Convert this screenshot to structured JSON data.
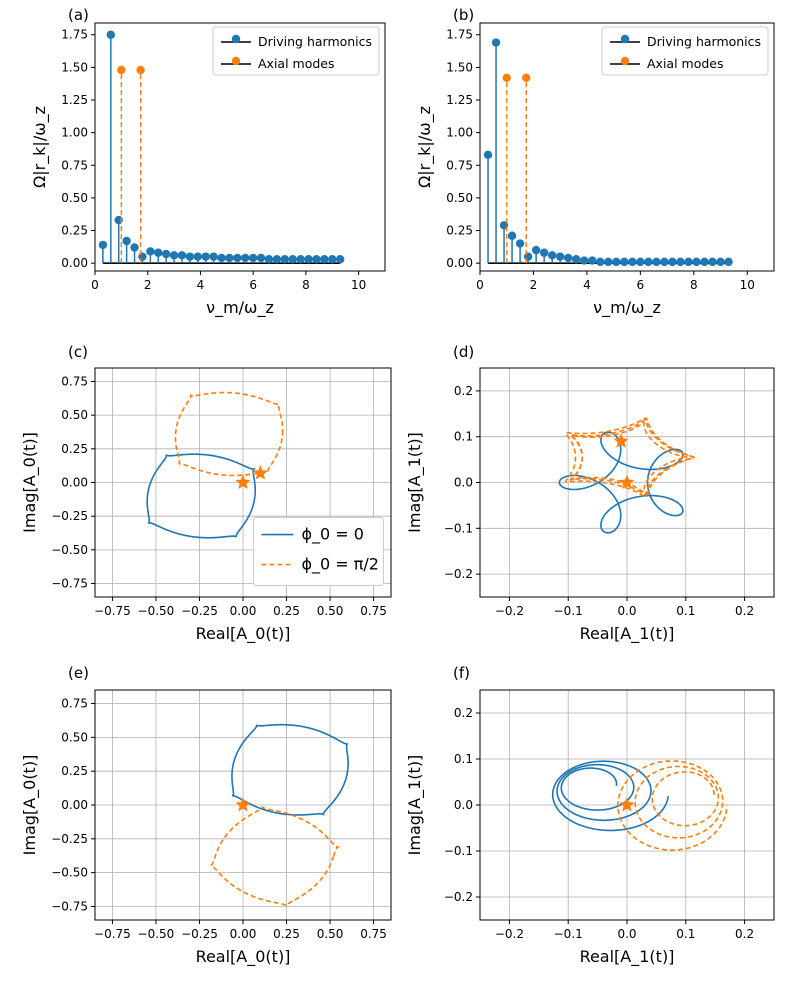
{
  "colors": {
    "blue": "#1f77b4",
    "orange": "#ff7f0e",
    "grid": "#b0b0b0",
    "baseline": "#000000"
  },
  "chart_data": [
    {
      "id": "a",
      "type": "stem",
      "panel_label": "(a)",
      "xlabel": "ν_m/ω_z",
      "ylabel": "Ω|r_k|/ω_z",
      "xlim": [
        0,
        11
      ],
      "ylim": [
        -0.06,
        1.84
      ],
      "xticks": [
        "0",
        "2",
        "4",
        "6",
        "8",
        "10"
      ],
      "yticks": [
        "0.00",
        "0.25",
        "0.50",
        "0.75",
        "1.00",
        "1.25",
        "1.50",
        "1.75"
      ],
      "legend": [
        "Driving harmonics",
        "Axial modes"
      ],
      "series": [
        {
          "name": "Driving harmonics",
          "color": "blue",
          "x": [
            0.3,
            0.6,
            0.9,
            1.2,
            1.5,
            1.8,
            2.1,
            2.4,
            2.7,
            3.0,
            3.3,
            3.6,
            3.9,
            4.2,
            4.5,
            4.8,
            5.1,
            5.4,
            5.7,
            6.0,
            6.3,
            6.6,
            6.9,
            7.2,
            7.5,
            7.8,
            8.1,
            8.4,
            8.7,
            9.0,
            9.3
          ],
          "y": [
            0.14,
            1.75,
            0.33,
            0.17,
            0.12,
            0.05,
            0.09,
            0.08,
            0.07,
            0.06,
            0.06,
            0.05,
            0.05,
            0.05,
            0.05,
            0.04,
            0.04,
            0.04,
            0.04,
            0.04,
            0.04,
            0.03,
            0.03,
            0.03,
            0.03,
            0.03,
            0.03,
            0.03,
            0.03,
            0.03,
            0.03
          ]
        },
        {
          "name": "Axial modes",
          "color": "orange",
          "x": [
            1.0,
            1.73
          ],
          "y": [
            1.48,
            1.48
          ]
        }
      ]
    },
    {
      "id": "b",
      "type": "stem",
      "panel_label": "(b)",
      "xlabel": "ν_m/ω_z",
      "ylabel": "Ω|r_k|/ω_z",
      "xlim": [
        0,
        11
      ],
      "ylim": [
        -0.06,
        1.84
      ],
      "xticks": [
        "0",
        "2",
        "4",
        "6",
        "8",
        "10"
      ],
      "yticks": [
        "0.00",
        "0.25",
        "0.50",
        "0.75",
        "1.00",
        "1.25",
        "1.50",
        "1.75"
      ],
      "legend": [
        "Driving harmonics",
        "Axial modes"
      ],
      "series": [
        {
          "name": "Driving harmonics",
          "color": "blue",
          "x": [
            0.3,
            0.6,
            0.9,
            1.2,
            1.5,
            1.8,
            2.1,
            2.4,
            2.7,
            3.0,
            3.3,
            3.6,
            3.9,
            4.2,
            4.5,
            4.8,
            5.1,
            5.4,
            5.7,
            6.0,
            6.3,
            6.6,
            6.9,
            7.2,
            7.5,
            7.8,
            8.1,
            8.4,
            8.7,
            9.0,
            9.3
          ],
          "y": [
            0.83,
            1.69,
            0.29,
            0.21,
            0.15,
            0.05,
            0.1,
            0.08,
            0.06,
            0.05,
            0.04,
            0.03,
            0.02,
            0.02,
            0.01,
            0.01,
            0.01,
            0.01,
            0.01,
            0.01,
            0.01,
            0.01,
            0.01,
            0.01,
            0.01,
            0.01,
            0.01,
            0.01,
            0.01,
            0.01,
            0.01
          ]
        },
        {
          "name": "Axial modes",
          "color": "orange",
          "x": [
            1.0,
            1.73
          ],
          "y": [
            1.42,
            1.42
          ]
        }
      ]
    },
    {
      "id": "c",
      "type": "parametric",
      "panel_label": "(c)",
      "xlabel": "Real[A_0(t)]",
      "ylabel": "Imag[A_0(t)]",
      "xlim": [
        -0.85,
        0.85
      ],
      "ylim": [
        -0.85,
        0.85
      ],
      "xticks": [
        "−0.75",
        "−0.50",
        "−0.25",
        "0.00",
        "0.25",
        "0.50",
        "0.75"
      ],
      "yticks": [
        "−0.75",
        "−0.50",
        "−0.25",
        "0.00",
        "0.25",
        "0.50",
        "0.75"
      ],
      "legend": [
        "ϕ_0 = 0",
        "ϕ_0 = π/2"
      ],
      "series": [
        {
          "name": "ϕ_0 = 0",
          "color": "blue",
          "dash": false,
          "cx": -0.24,
          "cy": -0.1,
          "r": 0.33,
          "lobes": 4,
          "depth": 0.18,
          "rot": 0.2
        },
        {
          "name": "ϕ_0 = π/2",
          "color": "orange",
          "dash": true,
          "cx": -0.08,
          "cy": 0.36,
          "r": 0.33,
          "lobes": 4,
          "depth": 0.18,
          "rot": 1.7
        }
      ],
      "stars": [
        {
          "x": 0.0,
          "y": 0.0
        },
        {
          "x": 0.1,
          "y": 0.07
        }
      ]
    },
    {
      "id": "d",
      "type": "parametric",
      "panel_label": "(d)",
      "xlabel": "Real[A_1(t)]",
      "ylabel": "Imag[A_1(t)]",
      "xlim": [
        -0.25,
        0.25
      ],
      "ylim": [
        -0.25,
        0.25
      ],
      "xticks": [
        "−0.2",
        "−0.1",
        "0.0",
        "0.1",
        "0.2"
      ],
      "yticks": [
        "−0.2",
        "−0.1",
        "0.0",
        "0.1",
        "0.2"
      ],
      "series": [
        {
          "name": "ϕ_0 = 0",
          "color": "blue",
          "dash": false,
          "type": "trefoil",
          "a": 0.06,
          "b": 0.05,
          "ox": 0.0,
          "oy": 0.0
        },
        {
          "name": "ϕ_0 = π/2",
          "color": "orange",
          "dash": true,
          "type": "ellipses",
          "cx": -0.005,
          "cy": 0.055,
          "rx": 0.095,
          "ry": 0.1
        }
      ],
      "stars": [
        {
          "x": 0.0,
          "y": 0.0
        },
        {
          "x": -0.01,
          "y": 0.09
        }
      ]
    },
    {
      "id": "e",
      "type": "parametric",
      "panel_label": "(e)",
      "xlabel": "Real[A_0(t)]",
      "ylabel": "Imag[A_0(t)]",
      "xlim": [
        -0.85,
        0.85
      ],
      "ylim": [
        -0.85,
        0.85
      ],
      "xticks": [
        "−0.75",
        "−0.50",
        "−0.25",
        "0.00",
        "0.25",
        "0.50",
        "0.75"
      ],
      "yticks": [
        "−0.75",
        "−0.50",
        "−0.25",
        "0.00",
        "0.25",
        "0.50",
        "0.75"
      ],
      "series": [
        {
          "name": "ϕ_0 = 0",
          "color": "blue",
          "dash": false,
          "cx": 0.27,
          "cy": 0.26,
          "r": 0.35,
          "lobes": 4,
          "depth": 0.16,
          "rot": 3.4
        },
        {
          "name": "ϕ_0 = π/2",
          "color": "orange",
          "dash": true,
          "cx": 0.18,
          "cy": -0.38,
          "r": 0.34,
          "lobes": 4,
          "depth": 0.17,
          "rot": 0.6
        }
      ],
      "stars": [
        {
          "x": 0.0,
          "y": 0.0
        }
      ]
    },
    {
      "id": "f",
      "type": "parametric",
      "panel_label": "(f)",
      "xlabel": "Real[A_1(t)]",
      "ylabel": "Imag[A_1(t)]",
      "xlim": [
        -0.25,
        0.25
      ],
      "ylim": [
        -0.25,
        0.25
      ],
      "xticks": [
        "−0.2",
        "−0.1",
        "0.0",
        "0.1",
        "0.2"
      ],
      "yticks": [
        "−0.2",
        "−0.1",
        "0.0",
        "0.1",
        "0.2"
      ],
      "series": [
        {
          "name": "ϕ_0 = 0",
          "color": "blue",
          "dash": false,
          "type": "nested",
          "cx": -0.03,
          "cy": 0.02,
          "rx": 0.1,
          "ry": 0.085
        },
        {
          "name": "ϕ_0 = π/2",
          "color": "orange",
          "dash": true,
          "type": "nested",
          "cx": 0.07,
          "cy": 0.0,
          "rx": 0.1,
          "ry": 0.11
        }
      ],
      "stars": [
        {
          "x": 0.0,
          "y": 0.0
        }
      ]
    }
  ]
}
